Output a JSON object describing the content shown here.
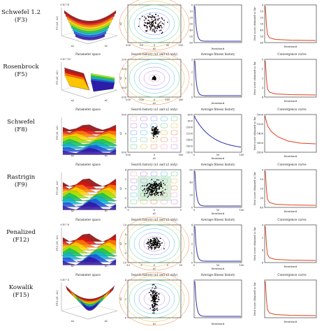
{
  "rows": [
    {
      "name": "Schwefel 1.2",
      "code": "(F3)",
      "zlabel": "F3 (x1, x2)",
      "exp": "×10^4",
      "hist_ticks_x": [
        "-100",
        "-50",
        "0",
        "50",
        "100"
      ],
      "hist_ticks_y": [],
      "avg_ticks_x": [],
      "avg_ticks_y": [
        "0",
        "10",
        "20",
        "30",
        "40",
        "50",
        "60"
      ],
      "conv_ticks_y": [
        "0",
        "10",
        "20",
        "30",
        "40",
        "50",
        "60"
      ],
      "conv_ticks_x": [],
      "iter_label": "Iteration#",
      "conv_ylabel": "Best score obtained so far"
    },
    {
      "name": "Rosenbrock",
      "code": "(F5)",
      "zlabel": "F5 (x1, x2)",
      "exp": "×10^10",
      "hist_ticks_x": [
        "-200",
        "-100",
        "0",
        "100",
        "200"
      ],
      "hist_ticks_y": [
        "200",
        "100",
        "0",
        "-100",
        "-200"
      ],
      "avg_ticks_x": [],
      "avg_ticks_y": [
        "3",
        "2",
        "1",
        "0"
      ],
      "conv_ticks_y": [
        "0",
        "1",
        "2",
        "3",
        "4"
      ],
      "conv_ticks_x": [],
      "iter_label": "Iteration#",
      "conv_ylabel": "Best score obtained so far"
    },
    {
      "name": "Schwefel",
      "code": "(F8)",
      "zlabel": "F8 (x1, x2)",
      "exp": "",
      "hist_ticks_x": [
        "-500",
        "0",
        "500"
      ],
      "hist_ticks_y": [
        "500",
        "0",
        "-500"
      ],
      "avg_ticks_x": [
        "0",
        "50",
        "100"
      ],
      "avg_ticks_y": [
        "-600",
        "-800",
        "-1000",
        "-1200",
        "-1400",
        "-1600",
        "-1800"
      ],
      "conv_ticks_y": [
        "-1000",
        "-1200",
        "-1400",
        "-1600",
        "-1800"
      ],
      "conv_ticks_x": [],
      "iter_label": "Iteration#",
      "conv_ylabel": "Best score obtained so far"
    },
    {
      "name": "Rastrigin",
      "code": "(F9)",
      "zlabel": "F9 (x1, x2)",
      "exp": "",
      "hist_ticks_x": [
        "-5",
        "0",
        "5"
      ],
      "hist_ticks_y": [
        "4",
        "2",
        "0",
        "-2",
        "-4"
      ],
      "avg_ticks_x": [
        "0",
        "50",
        "100"
      ],
      "avg_ticks_y": [
        "60",
        "40",
        "20",
        "0"
      ],
      "conv_ticks_y": [
        "0",
        "10",
        "20",
        "30",
        "40"
      ],
      "conv_ticks_x": [],
      "iter_label": "Iteration#",
      "conv_ylabel": "Best score obtained so far"
    },
    {
      "name": "Penalized",
      "code": "(F12)",
      "zlabel": "F12 (x1, x2)",
      "exp": "×10^8",
      "hist_ticks_x": [
        "-10",
        "-5",
        "0",
        "5",
        "10"
      ],
      "hist_ticks_y": [
        "10",
        "5",
        "0",
        "-5",
        "-10"
      ],
      "avg_ticks_x": [
        "0",
        "50",
        "100"
      ],
      "avg_ticks_y": [
        "4",
        "3",
        "2",
        "1",
        "0"
      ],
      "conv_ticks_y": [
        "0",
        "2",
        "4",
        "6"
      ],
      "conv_ticks_x": [],
      "iter_label": "Iteration#",
      "conv_ylabel": "Best score obtained so far"
    },
    {
      "name": "Kowalik",
      "code": "(F15)",
      "zlabel": "F15 (x1, x2)",
      "exp": "×10^5",
      "hist_ticks_x": [],
      "hist_ticks_y": [
        "4",
        "2",
        "0"
      ],
      "avg_ticks_x": [],
      "avg_ticks_y": [],
      "conv_ticks_y": [],
      "conv_ticks_x": [],
      "iter_label": "Iteration#",
      "conv_ylabel": "Best score obtained so far"
    }
  ],
  "panel_titles": {
    "param": "Parameter space",
    "history": "Search history (x1 and x2 only)",
    "avg": "Average fitness history",
    "conv": "Convergence curve"
  },
  "axis": {
    "x1": "x1",
    "x2": "x2"
  },
  "colors": {
    "avg_line": "#2a2fa8",
    "conv_line": "#e0401a",
    "points": "#000000"
  }
}
